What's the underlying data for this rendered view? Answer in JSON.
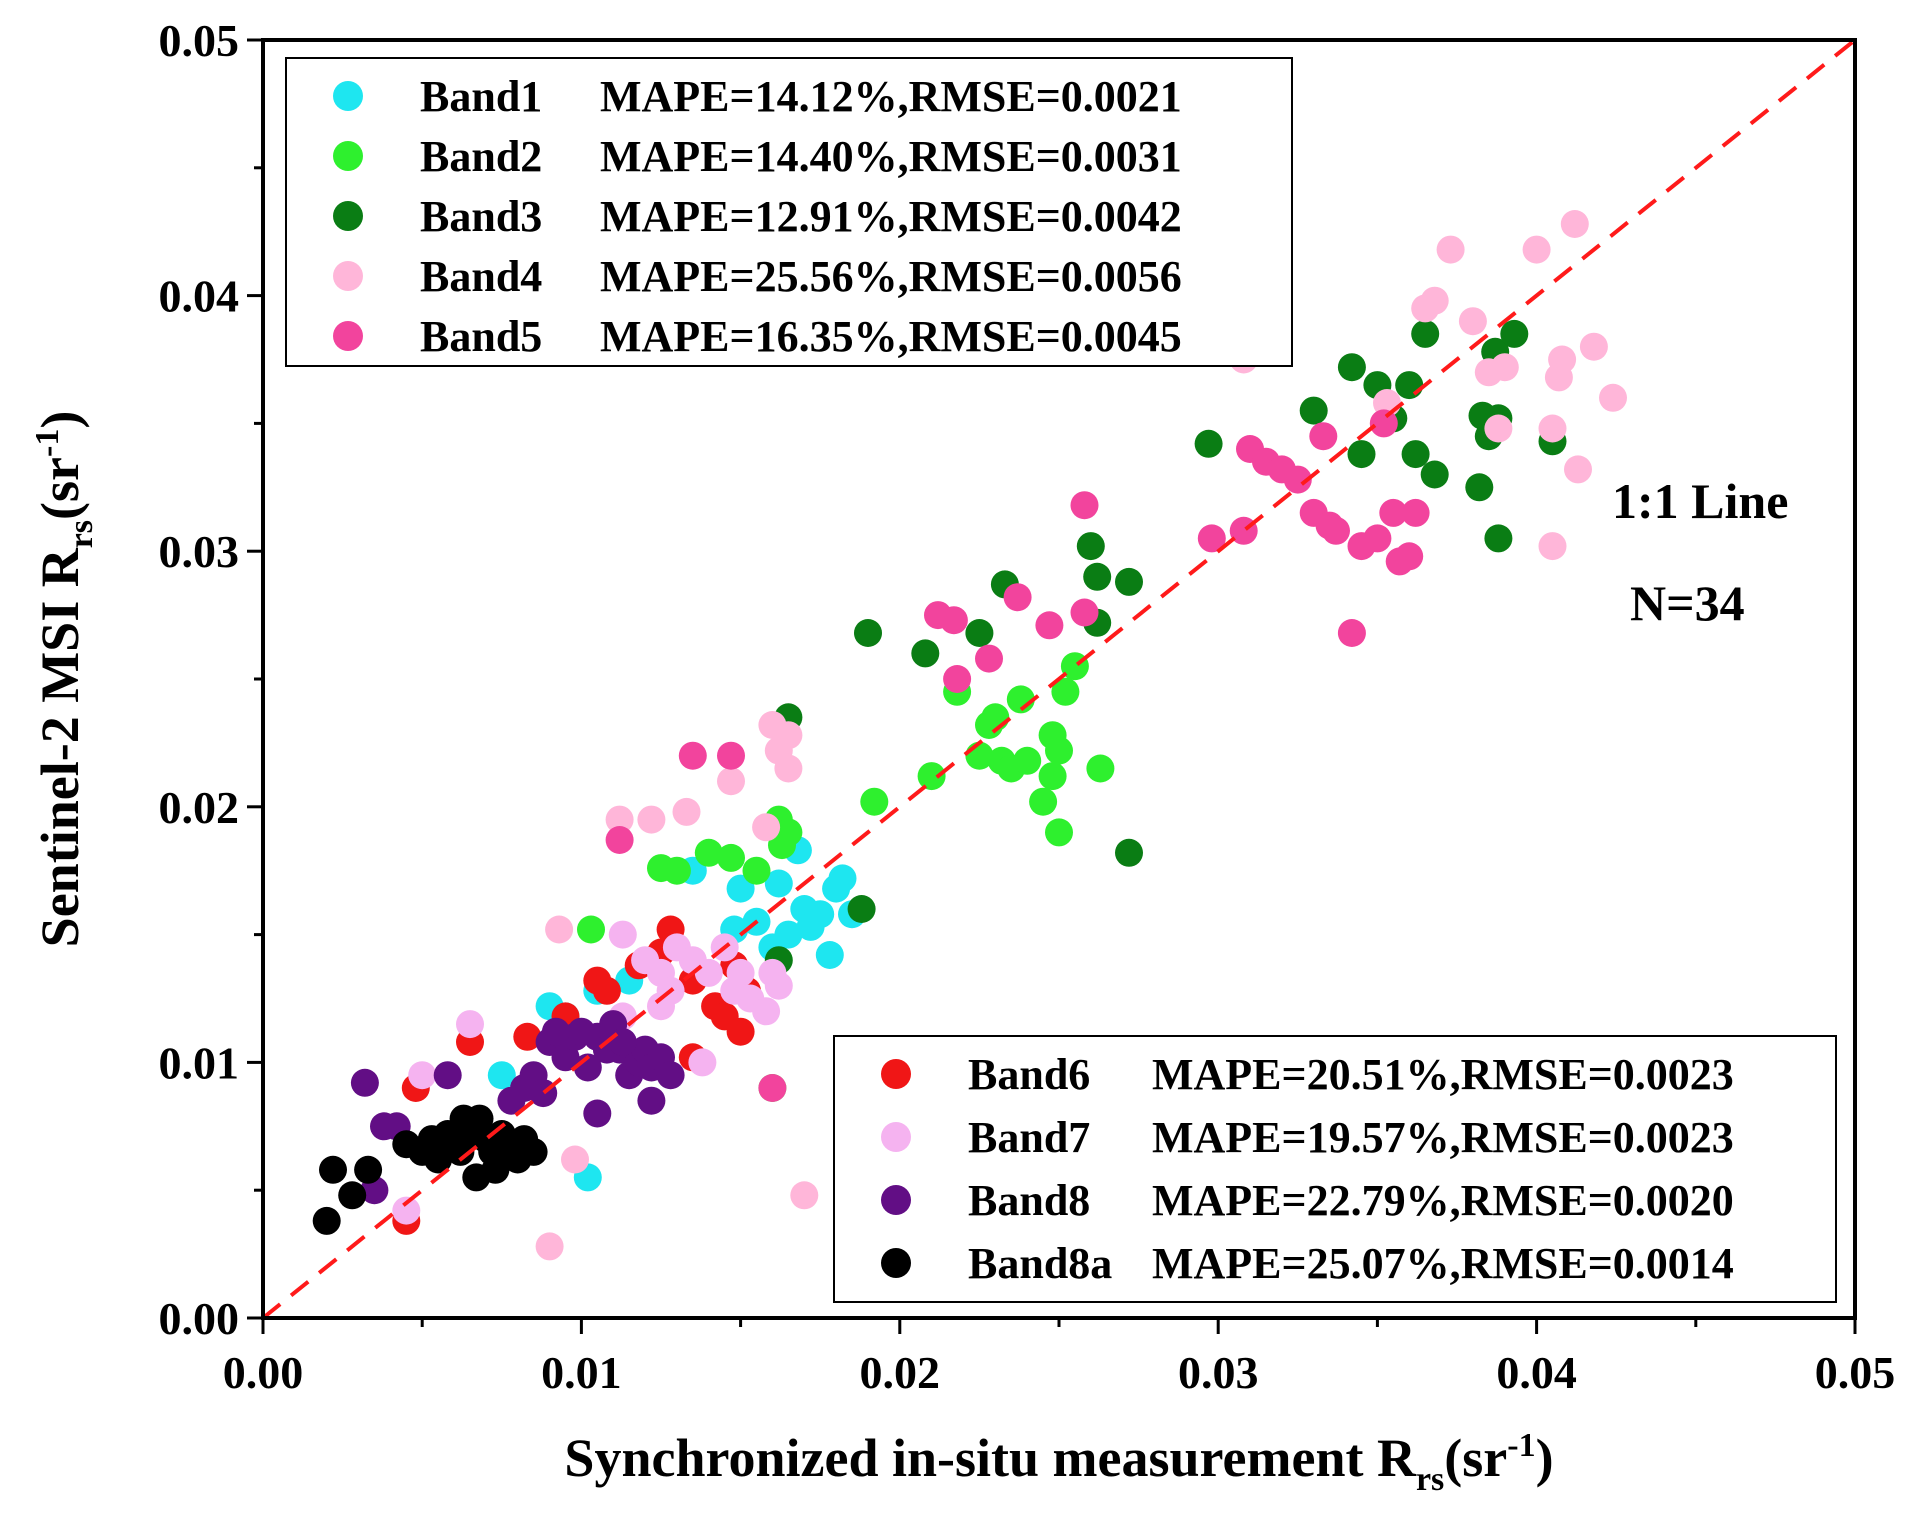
{
  "chart_data": {
    "type": "scatter",
    "title": "",
    "xlabel": {
      "main": "Synchronized in-situ measurement R",
      "sub": "rs",
      "unit_open": "(sr",
      "unit_sup": "-1",
      "unit_close": ")"
    },
    "ylabel": {
      "main": "Sentinel-2 MSI R",
      "sub": "rs",
      "unit_open": "(sr",
      "unit_sup": "-1",
      "unit_close": ")"
    },
    "xlim": [
      0,
      0.05
    ],
    "ylim": [
      0,
      0.05
    ],
    "x_ticks": [
      "0.00",
      "0.01",
      "0.02",
      "0.03",
      "0.04",
      "0.05"
    ],
    "y_ticks": [
      "0.00",
      "0.01",
      "0.02",
      "0.03",
      "0.04",
      "0.05"
    ],
    "reference_line": {
      "label": "1:1 Line",
      "color": "#ff1a1a"
    },
    "sample_size_label": "N=34",
    "legend_upper": [
      {
        "series": 0,
        "name": "Band1",
        "stats": "MAPE=14.12%,RMSE=0.0021"
      },
      {
        "series": 1,
        "name": "Band2",
        "stats": "MAPE=14.40%,RMSE=0.0031"
      },
      {
        "series": 2,
        "name": "Band3",
        "stats": "MAPE=12.91%,RMSE=0.0042"
      },
      {
        "series": 3,
        "name": "Band4",
        "stats": "MAPE=25.56%,RMSE=0.0056"
      },
      {
        "series": 4,
        "name": "Band5",
        "stats": "MAPE=16.35%,RMSE=0.0045"
      }
    ],
    "legend_lower": [
      {
        "series": 5,
        "name": "Band6",
        "stats": "MAPE=20.51%,RMSE=0.0023"
      },
      {
        "series": 6,
        "name": "Band7",
        "stats": "MAPE=19.57%,RMSE=0.0023"
      },
      {
        "series": 7,
        "name": "Band8",
        "stats": "MAPE=22.79%,RMSE=0.0020"
      },
      {
        "series": 8,
        "name": "Band8a",
        "stats": "MAPE=25.07%,RMSE=0.0014"
      }
    ],
    "series": [
      {
        "name": "Band1",
        "color": "#1ee6f0",
        "points": [
          [
            0.0075,
            0.0095
          ],
          [
            0.009,
            0.0122
          ],
          [
            0.0095,
            0.0118
          ],
          [
            0.0102,
            0.0055
          ],
          [
            0.0105,
            0.0128
          ],
          [
            0.0115,
            0.0132
          ],
          [
            0.0135,
            0.0175
          ],
          [
            0.015,
            0.0168
          ],
          [
            0.0155,
            0.0155
          ],
          [
            0.016,
            0.0145
          ],
          [
            0.0162,
            0.017
          ],
          [
            0.0165,
            0.015
          ],
          [
            0.017,
            0.016
          ],
          [
            0.0172,
            0.0153
          ],
          [
            0.0175,
            0.0158
          ],
          [
            0.0178,
            0.0142
          ],
          [
            0.018,
            0.0168
          ],
          [
            0.0182,
            0.0172
          ],
          [
            0.0185,
            0.0158
          ],
          [
            0.0168,
            0.0183
          ],
          [
            0.0148,
            0.0152
          ],
          [
            0.006,
            0.0068
          ]
        ]
      },
      {
        "name": "Band2",
        "color": "#2ef02e",
        "points": [
          [
            0.0103,
            0.0152
          ],
          [
            0.0125,
            0.0176
          ],
          [
            0.013,
            0.0175
          ],
          [
            0.014,
            0.0182
          ],
          [
            0.0147,
            0.018
          ],
          [
            0.0155,
            0.0175
          ],
          [
            0.0162,
            0.0195
          ],
          [
            0.0163,
            0.0185
          ],
          [
            0.0165,
            0.019
          ],
          [
            0.016,
            0.009
          ],
          [
            0.0192,
            0.0202
          ],
          [
            0.021,
            0.0212
          ],
          [
            0.0218,
            0.0245
          ],
          [
            0.0225,
            0.022
          ],
          [
            0.0228,
            0.0232
          ],
          [
            0.023,
            0.0235
          ],
          [
            0.0232,
            0.0218
          ],
          [
            0.0235,
            0.0215
          ],
          [
            0.0238,
            0.0242
          ],
          [
            0.024,
            0.0218
          ],
          [
            0.0245,
            0.0202
          ],
          [
            0.0248,
            0.0228
          ],
          [
            0.025,
            0.0222
          ],
          [
            0.0252,
            0.0245
          ],
          [
            0.0255,
            0.0255
          ],
          [
            0.025,
            0.019
          ],
          [
            0.0263,
            0.0215
          ],
          [
            0.0248,
            0.0212
          ]
        ]
      },
      {
        "name": "Band3",
        "color": "#0a7d14",
        "points": [
          [
            0.0165,
            0.0235
          ],
          [
            0.019,
            0.0268
          ],
          [
            0.0188,
            0.016
          ],
          [
            0.0208,
            0.026
          ],
          [
            0.0225,
            0.0268
          ],
          [
            0.0233,
            0.0287
          ],
          [
            0.026,
            0.0302
          ],
          [
            0.0262,
            0.029
          ],
          [
            0.0262,
            0.0272
          ],
          [
            0.0272,
            0.0288
          ],
          [
            0.0272,
            0.0182
          ],
          [
            0.0297,
            0.0342
          ],
          [
            0.033,
            0.0355
          ],
          [
            0.0342,
            0.0372
          ],
          [
            0.0345,
            0.0338
          ],
          [
            0.035,
            0.0365
          ],
          [
            0.0355,
            0.0352
          ],
          [
            0.036,
            0.0365
          ],
          [
            0.0362,
            0.0338
          ],
          [
            0.0365,
            0.0385
          ],
          [
            0.0368,
            0.033
          ],
          [
            0.0382,
            0.0325
          ],
          [
            0.0383,
            0.0353
          ],
          [
            0.0385,
            0.0345
          ],
          [
            0.0387,
            0.0378
          ],
          [
            0.0388,
            0.0352
          ],
          [
            0.0393,
            0.0385
          ],
          [
            0.0405,
            0.0343
          ],
          [
            0.0388,
            0.0305
          ],
          [
            0.0162,
            0.014
          ]
        ]
      },
      {
        "name": "Band4",
        "color": "#ffb6d9",
        "points": [
          [
            0.0112,
            0.0195
          ],
          [
            0.0122,
            0.0195
          ],
          [
            0.0133,
            0.0198
          ],
          [
            0.0147,
            0.021
          ],
          [
            0.0158,
            0.0192
          ],
          [
            0.016,
            0.0232
          ],
          [
            0.0162,
            0.0222
          ],
          [
            0.0165,
            0.0228
          ],
          [
            0.0165,
            0.0215
          ],
          [
            0.0093,
            0.0152
          ],
          [
            0.0098,
            0.0062
          ],
          [
            0.009,
            0.0028
          ],
          [
            0.017,
            0.0048
          ],
          [
            0.0365,
            0.0395
          ],
          [
            0.0368,
            0.0398
          ],
          [
            0.0373,
            0.0418
          ],
          [
            0.038,
            0.039
          ],
          [
            0.0385,
            0.037
          ],
          [
            0.039,
            0.0372
          ],
          [
            0.0388,
            0.0348
          ],
          [
            0.04,
            0.0418
          ],
          [
            0.0405,
            0.0348
          ],
          [
            0.0407,
            0.0368
          ],
          [
            0.0408,
            0.0375
          ],
          [
            0.0412,
            0.0428
          ],
          [
            0.0413,
            0.0332
          ],
          [
            0.0418,
            0.038
          ],
          [
            0.0424,
            0.036
          ],
          [
            0.0405,
            0.0302
          ],
          [
            0.0353,
            0.0358
          ],
          [
            0.0308,
            0.0375
          ]
        ]
      },
      {
        "name": "Band5",
        "color": "#f2449d",
        "points": [
          [
            0.0112,
            0.0187
          ],
          [
            0.0135,
            0.022
          ],
          [
            0.0147,
            0.022
          ],
          [
            0.016,
            0.009
          ],
          [
            0.0212,
            0.0275
          ],
          [
            0.0217,
            0.0273
          ],
          [
            0.0218,
            0.025
          ],
          [
            0.0228,
            0.0258
          ],
          [
            0.0237,
            0.0282
          ],
          [
            0.0247,
            0.0271
          ],
          [
            0.0258,
            0.0318
          ],
          [
            0.0258,
            0.0276
          ],
          [
            0.0298,
            0.0305
          ],
          [
            0.0308,
            0.0308
          ],
          [
            0.031,
            0.034
          ],
          [
            0.0315,
            0.0335
          ],
          [
            0.032,
            0.0332
          ],
          [
            0.0325,
            0.0328
          ],
          [
            0.033,
            0.0315
          ],
          [
            0.0333,
            0.0345
          ],
          [
            0.0335,
            0.031
          ],
          [
            0.0337,
            0.0308
          ],
          [
            0.0342,
            0.0268
          ],
          [
            0.0345,
            0.0302
          ],
          [
            0.035,
            0.0305
          ],
          [
            0.0352,
            0.035
          ],
          [
            0.0355,
            0.0315
          ],
          [
            0.0357,
            0.0296
          ],
          [
            0.036,
            0.0298
          ],
          [
            0.0362,
            0.0315
          ]
        ]
      },
      {
        "name": "Band6",
        "color": "#f01616",
        "points": [
          [
            0.0045,
            0.0038
          ],
          [
            0.0048,
            0.009
          ],
          [
            0.0065,
            0.0108
          ],
          [
            0.0083,
            0.011
          ],
          [
            0.0095,
            0.0118
          ],
          [
            0.0105,
            0.0132
          ],
          [
            0.0108,
            0.0128
          ],
          [
            0.0118,
            0.0138
          ],
          [
            0.0125,
            0.0143
          ],
          [
            0.0128,
            0.0152
          ],
          [
            0.0135,
            0.0132
          ],
          [
            0.0138,
            0.0135
          ],
          [
            0.0142,
            0.0122
          ],
          [
            0.0145,
            0.0118
          ],
          [
            0.015,
            0.0112
          ],
          [
            0.0152,
            0.0128
          ],
          [
            0.0135,
            0.0102
          ],
          [
            0.0148,
            0.0138
          ]
        ]
      },
      {
        "name": "Band7",
        "color": "#f5b3f0",
        "points": [
          [
            0.0045,
            0.0042
          ],
          [
            0.005,
            0.0095
          ],
          [
            0.0065,
            0.0115
          ],
          [
            0.0113,
            0.015
          ],
          [
            0.012,
            0.014
          ],
          [
            0.0125,
            0.0135
          ],
          [
            0.0128,
            0.0128
          ],
          [
            0.013,
            0.0145
          ],
          [
            0.0135,
            0.014
          ],
          [
            0.014,
            0.0135
          ],
          [
            0.0145,
            0.0145
          ],
          [
            0.0148,
            0.0128
          ],
          [
            0.015,
            0.0135
          ],
          [
            0.0153,
            0.0125
          ],
          [
            0.0158,
            0.012
          ],
          [
            0.016,
            0.0135
          ],
          [
            0.0162,
            0.013
          ],
          [
            0.0138,
            0.01
          ],
          [
            0.0113,
            0.0118
          ],
          [
            0.0125,
            0.0122
          ]
        ]
      },
      {
        "name": "Band8",
        "color": "#620e85",
        "points": [
          [
            0.0032,
            0.0092
          ],
          [
            0.0035,
            0.005
          ],
          [
            0.0038,
            0.0075
          ],
          [
            0.0042,
            0.0075
          ],
          [
            0.0058,
            0.0095
          ],
          [
            0.0078,
            0.0085
          ],
          [
            0.0082,
            0.009
          ],
          [
            0.0085,
            0.0095
          ],
          [
            0.0088,
            0.0088
          ],
          [
            0.009,
            0.0108
          ],
          [
            0.0095,
            0.0102
          ],
          [
            0.0098,
            0.011
          ],
          [
            0.01,
            0.0112
          ],
          [
            0.0102,
            0.0098
          ],
          [
            0.0105,
            0.011
          ],
          [
            0.0108,
            0.0105
          ],
          [
            0.011,
            0.0115
          ],
          [
            0.0112,
            0.0105
          ],
          [
            0.0115,
            0.0095
          ],
          [
            0.0118,
            0.01
          ],
          [
            0.012,
            0.0105
          ],
          [
            0.0122,
            0.0098
          ],
          [
            0.0125,
            0.0102
          ],
          [
            0.0128,
            0.0095
          ],
          [
            0.0122,
            0.0085
          ],
          [
            0.0105,
            0.008
          ],
          [
            0.0092,
            0.0112
          ],
          [
            0.0113,
            0.0108
          ]
        ]
      },
      {
        "name": "Band8a",
        "color": "#000000",
        "points": [
          [
            0.002,
            0.0038
          ],
          [
            0.0022,
            0.0058
          ],
          [
            0.0028,
            0.0048
          ],
          [
            0.0033,
            0.0058
          ],
          [
            0.0045,
            0.0068
          ],
          [
            0.005,
            0.0065
          ],
          [
            0.0053,
            0.007
          ],
          [
            0.0055,
            0.0062
          ],
          [
            0.0058,
            0.0072
          ],
          [
            0.006,
            0.0068
          ],
          [
            0.0062,
            0.0065
          ],
          [
            0.0065,
            0.0072
          ],
          [
            0.0067,
            0.0055
          ],
          [
            0.0068,
            0.0078
          ],
          [
            0.007,
            0.007
          ],
          [
            0.0072,
            0.0065
          ],
          [
            0.0075,
            0.0072
          ],
          [
            0.0078,
            0.0068
          ],
          [
            0.008,
            0.0062
          ],
          [
            0.0082,
            0.007
          ],
          [
            0.0085,
            0.0065
          ],
          [
            0.0063,
            0.0078
          ],
          [
            0.0073,
            0.0058
          ]
        ]
      }
    ]
  }
}
